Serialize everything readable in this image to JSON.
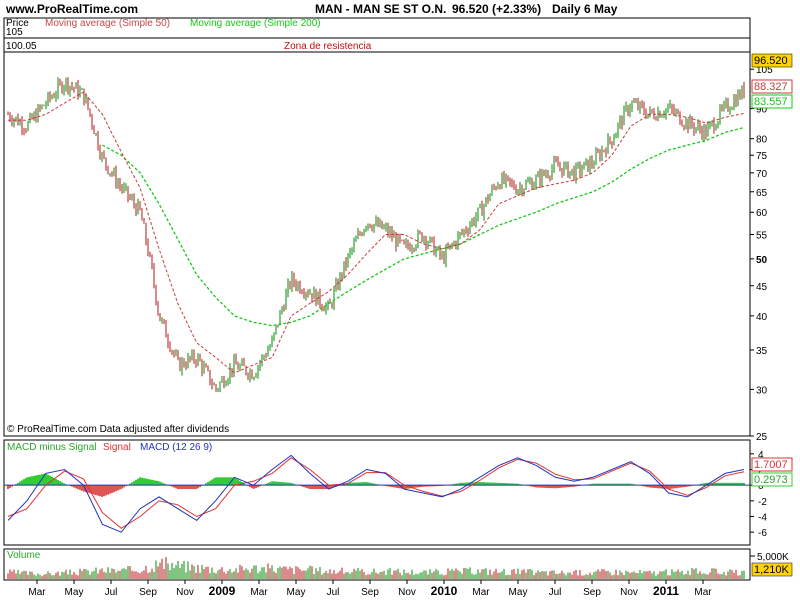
{
  "header": {
    "site": "www.ProRealTime.com",
    "ticker": "MAN - MAN SE ST O.N.",
    "quote": "96.520 (+2.33%)",
    "period": "Daily  6 May"
  },
  "price_panel": {
    "legend_price": "Price",
    "legend_sma50": "Moving average (Simple 50)",
    "legend_sma200": "Moving average (Simple 200)",
    "level_label_upper": "105",
    "level_label_lower": "100.05",
    "zone_label": "Zona de resistencia",
    "footer_note": "© ProRealTime.com  Data adjusted after dividends",
    "last_price": "96.520",
    "sma50_value": "88.327",
    "sma200_value": "83.557",
    "colors": {
      "price": "#808000",
      "up": "#2e9c2e",
      "down": "#c04040",
      "sma50": "#c83c3c",
      "sma200": "#18c818",
      "last_box": "#ffd400"
    }
  },
  "macd_panel": {
    "legend_hist": "MACD minus Signal",
    "legend_signal": "Signal",
    "legend_macd": "MACD (12 26 9)",
    "value_signal": "1.7007",
    "value_hist": "0.2973",
    "colors": {
      "hist_pos": "#33cc33",
      "hist_neg": "#dd5555",
      "signal": "#dd3333",
      "macd": "#2233bb"
    }
  },
  "volume_panel": {
    "legend": "Volume",
    "scale_label": "5,000K",
    "last_value": "1,210K"
  },
  "x_axis_labels": [
    {
      "label": "Mar",
      "bold": false
    },
    {
      "label": "May",
      "bold": false
    },
    {
      "label": "Jul",
      "bold": false
    },
    {
      "label": "Sep",
      "bold": false
    },
    {
      "label": "Nov",
      "bold": false
    },
    {
      "label": "2009",
      "bold": true
    },
    {
      "label": "Mar",
      "bold": false
    },
    {
      "label": "May",
      "bold": false
    },
    {
      "label": "Jul",
      "bold": false
    },
    {
      "label": "Sep",
      "bold": false
    },
    {
      "label": "Nov",
      "bold": false
    },
    {
      "label": "2010",
      "bold": true
    },
    {
      "label": "Mar",
      "bold": false
    },
    {
      "label": "May",
      "bold": false
    },
    {
      "label": "Jul",
      "bold": false
    },
    {
      "label": "Sep",
      "bold": false
    },
    {
      "label": "Nov",
      "bold": false
    },
    {
      "label": "2011",
      "bold": true
    },
    {
      "label": "Mar",
      "bold": false
    }
  ],
  "chart_data": [
    {
      "type": "line",
      "name": "price",
      "y_scale": "log",
      "ylim": [
        25,
        108
      ],
      "y_ticks": [
        25,
        30,
        35,
        40,
        45,
        50,
        55,
        60,
        65,
        70,
        75,
        80,
        90,
        105
      ],
      "y_tick_bold": [
        50
      ],
      "resistance_zone": [
        100.05,
        105
      ],
      "x_months": [
        "2008-02",
        "2008-03",
        "2008-04",
        "2008-05",
        "2008-06",
        "2008-07",
        "2008-08",
        "2008-09",
        "2008-10",
        "2008-11",
        "2008-12",
        "2009-01",
        "2009-02",
        "2009-03",
        "2009-04",
        "2009-05",
        "2009-06",
        "2009-07",
        "2009-08",
        "2009-09",
        "2009-10",
        "2009-11",
        "2009-12",
        "2010-01",
        "2010-02",
        "2010-03",
        "2010-04",
        "2010-05",
        "2010-06",
        "2010-07",
        "2010-08",
        "2010-09",
        "2010-10",
        "2010-11",
        "2010-12",
        "2011-01",
        "2011-02",
        "2011-03",
        "2011-04",
        "2011-05"
      ],
      "series": [
        {
          "name": "Price",
          "values": [
            88,
            84,
            92,
            100,
            95,
            74,
            66,
            60,
            40,
            33,
            34,
            30,
            33,
            32,
            36,
            46,
            44,
            41,
            50,
            58,
            56,
            52,
            55,
            50,
            55,
            60,
            68,
            66,
            68,
            72,
            70,
            73,
            80,
            92,
            88,
            90,
            85,
            82,
            90,
            96.52
          ]
        },
        {
          "name": "Moving average (Simple 50)",
          "values": [
            86,
            86,
            88,
            92,
            96,
            88,
            76,
            66,
            52,
            42,
            36,
            34,
            32,
            33,
            34,
            40,
            42,
            44,
            47,
            51,
            55,
            55,
            53,
            52,
            53,
            56,
            62,
            64,
            66,
            67,
            68,
            70,
            75,
            84,
            88,
            88,
            87,
            85,
            87,
            88.327
          ]
        },
        {
          "name": "Moving average (Simple 200)",
          "values": [
            null,
            null,
            null,
            null,
            null,
            78,
            75,
            70,
            62,
            54,
            47,
            43,
            40,
            39,
            38.5,
            39,
            40,
            42,
            44,
            46,
            48,
            50,
            51,
            52,
            53,
            55,
            57,
            58.5,
            60,
            62,
            63.5,
            65,
            67.5,
            71,
            74,
            76.5,
            78,
            79.5,
            82,
            83.557
          ]
        }
      ],
      "last_values": {
        "Price": 96.52,
        "Moving average (Simple 50)": 88.327,
        "Moving average (Simple 200)": 83.557
      }
    },
    {
      "type": "line",
      "name": "macd",
      "ylim": [
        -7,
        5
      ],
      "y_ticks": [
        -6,
        -4,
        -2,
        0,
        2,
        4
      ],
      "series": [
        {
          "name": "MACD (12 26 9)",
          "values": [
            -4.5,
            -2,
            1.5,
            2,
            0,
            -5,
            -6,
            -3,
            -1.5,
            -3,
            -4.5,
            -2,
            1,
            0,
            2,
            3.8,
            1.5,
            -0.5,
            0.5,
            2,
            1.5,
            -0.5,
            -1,
            -1.5,
            -0.5,
            1,
            2.5,
            3.5,
            2.5,
            1,
            0.5,
            1,
            2,
            3,
            1.5,
            -1,
            -1.5,
            0,
            1.5,
            2
          ]
        },
        {
          "name": "Signal",
          "values": [
            -4,
            -3,
            0,
            1.8,
            0.8,
            -3.5,
            -5.5,
            -4,
            -2,
            -2.5,
            -4,
            -3,
            0,
            0.5,
            1.5,
            3.5,
            2,
            0,
            0.2,
            1.6,
            1.6,
            0,
            -0.8,
            -1.4,
            -0.8,
            0.6,
            2.2,
            3.3,
            2.8,
            1.4,
            0.7,
            0.8,
            1.8,
            2.8,
            1.8,
            -0.5,
            -1.3,
            -0.3,
            1.2,
            1.7007
          ]
        },
        {
          "name": "MACD minus Signal",
          "values": [
            -0.5,
            1,
            1.5,
            0.2,
            -0.8,
            -1.5,
            -0.5,
            1,
            0.5,
            -0.5,
            -0.5,
            1,
            1,
            -0.5,
            0.5,
            0.3,
            -0.5,
            -0.5,
            0.3,
            0.4,
            -0.1,
            -0.5,
            -0.2,
            -0.1,
            0.3,
            0.4,
            0.3,
            0.2,
            -0.3,
            -0.4,
            -0.2,
            0.2,
            0.2,
            0.2,
            -0.3,
            -0.5,
            -0.2,
            0.3,
            0.3,
            0.2973
          ]
        }
      ],
      "last_values": {
        "Signal": 1.7007,
        "MACD minus Signal": 0.2973
      }
    },
    {
      "type": "bar",
      "name": "volume",
      "ylim": [
        0,
        5000
      ],
      "units": "K",
      "values": [
        1400,
        1200,
        1100,
        1300,
        1500,
        1800,
        1700,
        2100,
        3200,
        2800,
        2400,
        2100,
        2000,
        2300,
        2200,
        2000,
        1900,
        1700,
        1600,
        1500,
        1600,
        1500,
        1400,
        1500,
        1600,
        1700,
        1600,
        1500,
        1400,
        1300,
        1300,
        1400,
        1500,
        1400,
        1300,
        1400,
        1500,
        1600,
        1400,
        1210
      ],
      "last_value": 1210
    }
  ]
}
